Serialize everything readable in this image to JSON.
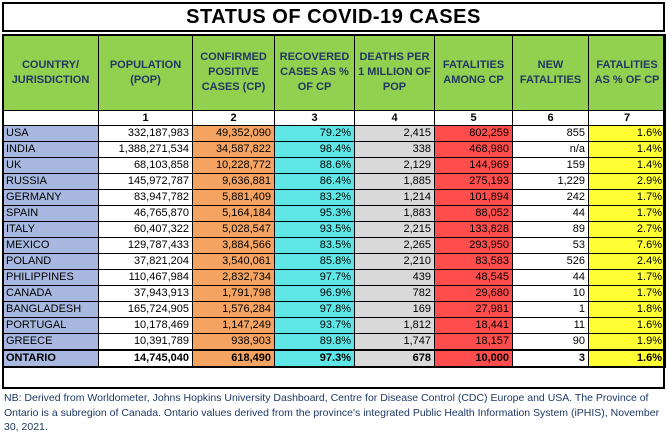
{
  "title": "STATUS OF COVID-19 CASES",
  "headers": [
    "COUNTRY/ JURISDICTION",
    "POPULATION (POP)",
    "CONFIRMED POSITIVE CASES (CP)",
    "RECOVERED CASES AS % OF CP",
    "DEATHS PER 1 MILLION OF POP",
    "FATALITIES AMONG CP",
    "NEW FATALITIES",
    "FATALITIES AS % OF CP"
  ],
  "column_numbers": [
    "",
    "1",
    "2",
    "3",
    "4",
    "5",
    "6",
    "7"
  ],
  "rows": [
    [
      "USA",
      "332,187,983",
      "49,352,090",
      "79.2%",
      "2,415",
      "802,259",
      "855",
      "1.6%"
    ],
    [
      "INDIA",
      "1,388,271,534",
      "34,587,822",
      "98.4%",
      "338",
      "468,980",
      "n/a",
      "1.4%"
    ],
    [
      "UK",
      "68,103,858",
      "10,228,772",
      "88.6%",
      "2,129",
      "144,969",
      "159",
      "1.4%"
    ],
    [
      "RUSSIA",
      "145,972,787",
      "9,636,881",
      "86.4%",
      "1,885",
      "275,193",
      "1,229",
      "2.9%"
    ],
    [
      "GERMANY",
      "83,947,782",
      "5,881,409",
      "83.2%",
      "1,214",
      "101,894",
      "242",
      "1.7%"
    ],
    [
      "SPAIN",
      "46,765,870",
      "5,164,184",
      "95.3%",
      "1,883",
      "88,052",
      "44",
      "1.7%"
    ],
    [
      "ITALY",
      "60,407,322",
      "5,028,547",
      "93.5%",
      "2,215",
      "133,828",
      "89",
      "2.7%"
    ],
    [
      "MEXICO",
      "129,787,433",
      "3,884,566",
      "83.5%",
      "2,265",
      "293,950",
      "53",
      "7.6%"
    ],
    [
      "POLAND",
      "37,821,204",
      "3,540,061",
      "85.8%",
      "2,210",
      "83,583",
      "526",
      "2.4%"
    ],
    [
      "PHILIPPINES",
      "110,467,984",
      "2,832,734",
      "97.7%",
      "439",
      "48,545",
      "44",
      "1.7%"
    ],
    [
      "CANADA",
      "37,943,913",
      "1,791,798",
      "96.9%",
      "782",
      "29,680",
      "10",
      "1.7%"
    ],
    [
      "BANGLADESH",
      "165,724,905",
      "1,576,284",
      "97.8%",
      "169",
      "27,981",
      "1",
      "1.8%"
    ],
    [
      "PORTUGAL",
      "10,178,469",
      "1,147,249",
      "93.7%",
      "1,812",
      "18,441",
      "11",
      "1.6%"
    ],
    [
      "GREECE",
      "10,391,789",
      "938,903",
      "89.8%",
      "1,747",
      "18,157",
      "90",
      "1.9%"
    ]
  ],
  "ontario": [
    "ONTARIO",
    "14,745,040",
    "618,490",
    "97.3%",
    "678",
    "10,000",
    "3",
    "1.6%"
  ],
  "note": "NB: Derived from Worldometer, Johns Hopkins University Dashboard, Centre for Disease Control (CDC) Europe and USA. The Province of Ontario is a subregion of Canada. Ontario values derived from the province's integrated Public Health Information System (iPHIS), November 30, 2021.",
  "colors": {
    "header_green": "#92d050",
    "country_blue": "#a9b8e0",
    "confirmed_orange": "#f4a460",
    "recovered_cyan": "#5ee6e6",
    "deaths_grey": "#d9d9d9",
    "fatalities_red": "#ff4d4d",
    "percent_yellow": "#ffff33"
  }
}
